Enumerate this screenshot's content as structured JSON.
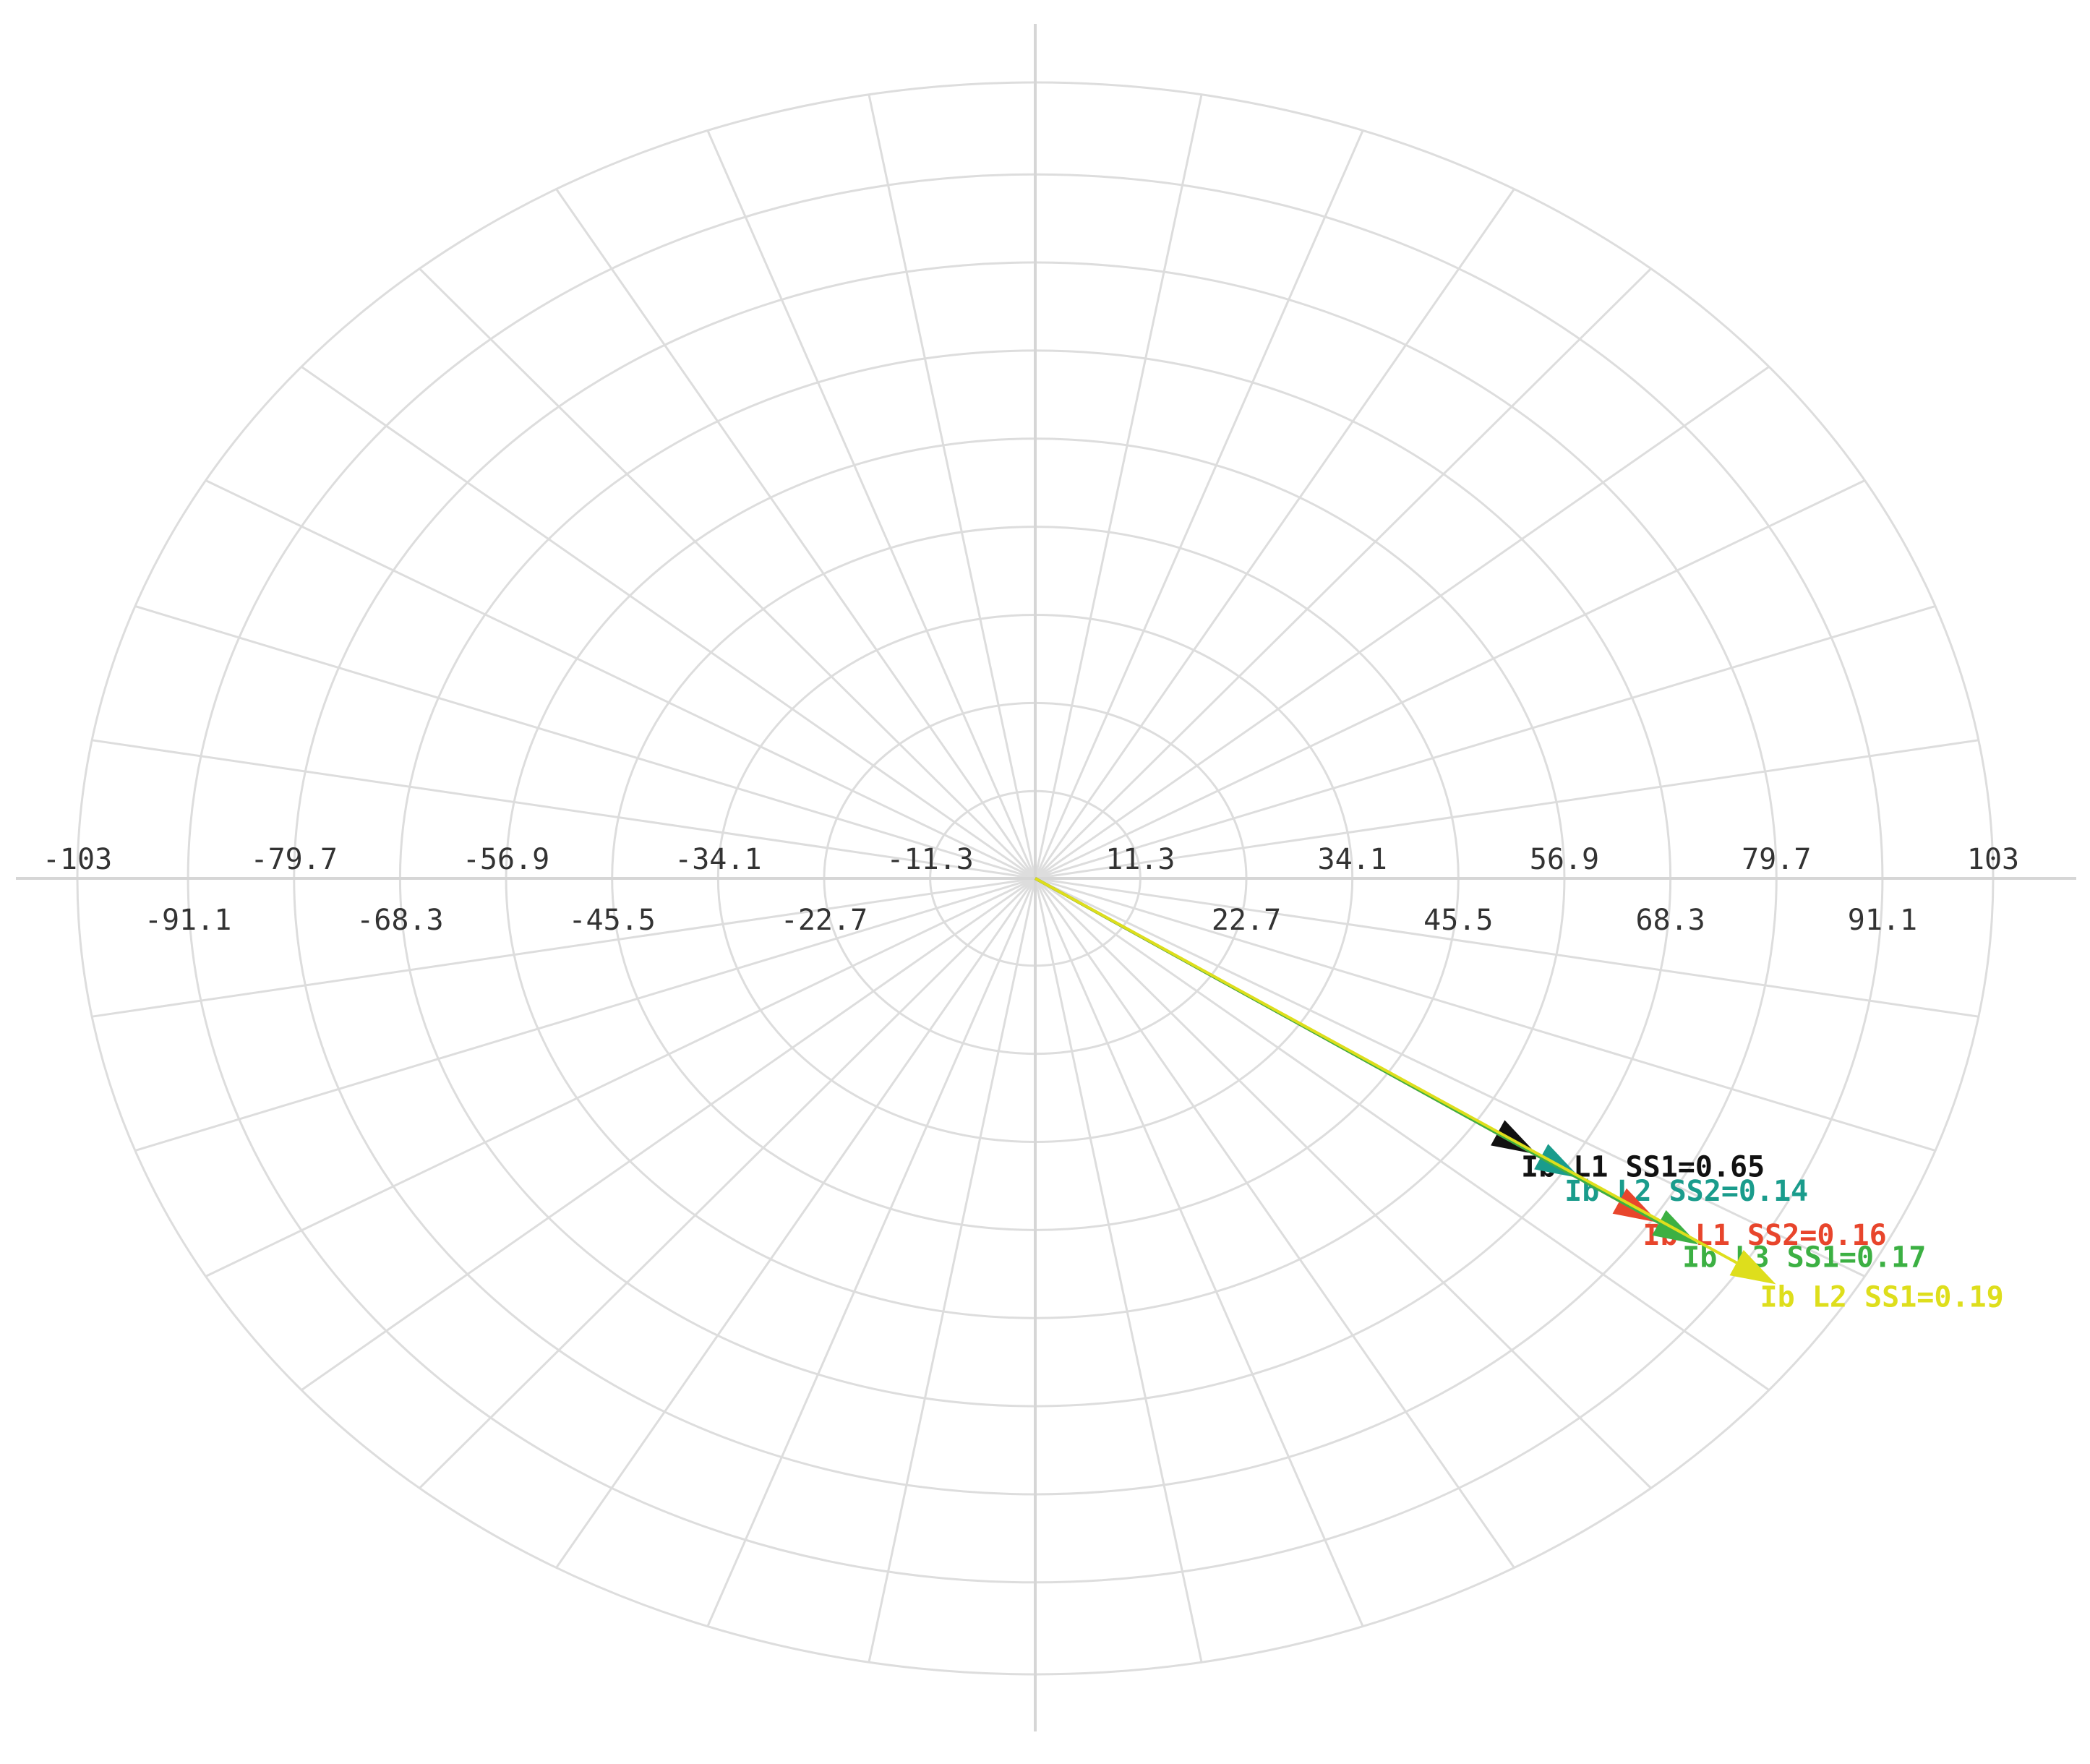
{
  "chart_data": {
    "type": "polar-phasor",
    "xlim": [
      -103,
      103
    ],
    "xticks": [
      -103,
      -91.1,
      -79.7,
      -68.3,
      -56.9,
      -45.5,
      -34.1,
      -22.7,
      -11.3,
      11.3,
      22.7,
      34.1,
      45.5,
      56.9,
      68.3,
      79.7,
      91.1,
      103
    ],
    "grid": true,
    "vectors": [
      {
        "name": "Ib L1 SS1=0.65",
        "color": "#111111",
        "magnitude": 64.7,
        "angle": -33.5
      },
      {
        "name": "Ib L2 SS2=0.14",
        "color": "#1a9c8c",
        "magnitude": 70.3,
        "angle": -33.5
      },
      {
        "name": "Ib L1 SS2=0.16",
        "color": "#e8452c",
        "magnitude": 80.5,
        "angle": -33.6
      },
      {
        "name": "Ib L3 SS1=0.17",
        "color": "#3cb043",
        "magnitude": 85.6,
        "angle": -33.6
      },
      {
        "name": "Ib L2 SS1=0.19",
        "color": "#dede1c",
        "magnitude": 95.4,
        "angle": -33.4
      }
    ]
  }
}
